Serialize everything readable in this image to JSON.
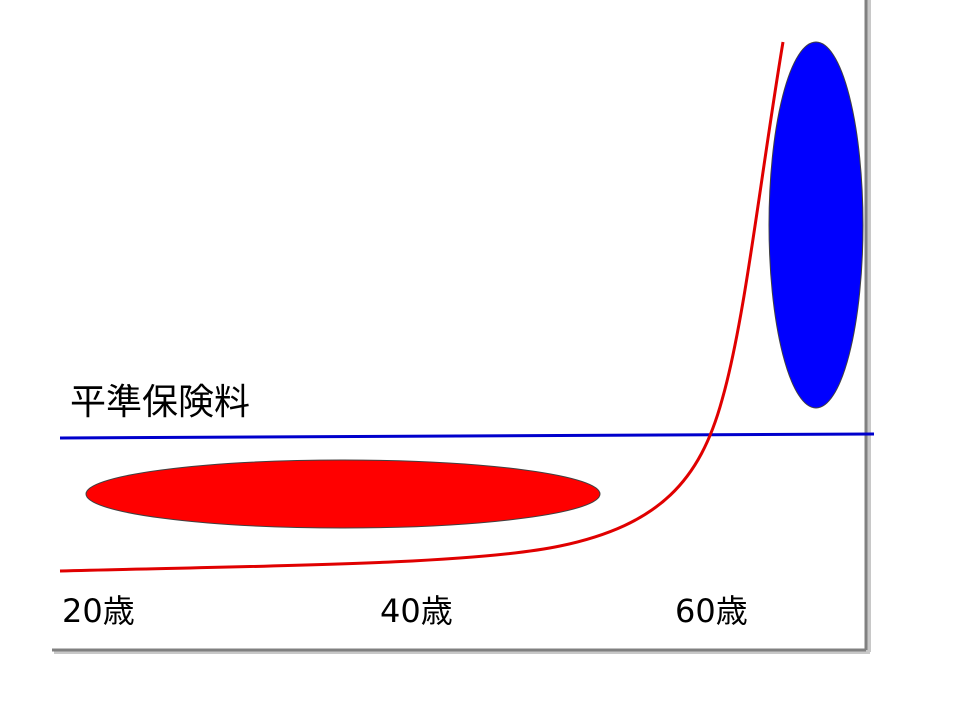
{
  "labels": {
    "level_premium": "平準保険料",
    "age_20": "20歳",
    "age_40": "40歳",
    "age_60": "60歳"
  },
  "colors": {
    "axis": "#808080",
    "level_line": "#0000cc",
    "cost_curve": "#e00000",
    "young_surplus": "#ff0000",
    "old_shortfall": "#0000ff"
  }
}
